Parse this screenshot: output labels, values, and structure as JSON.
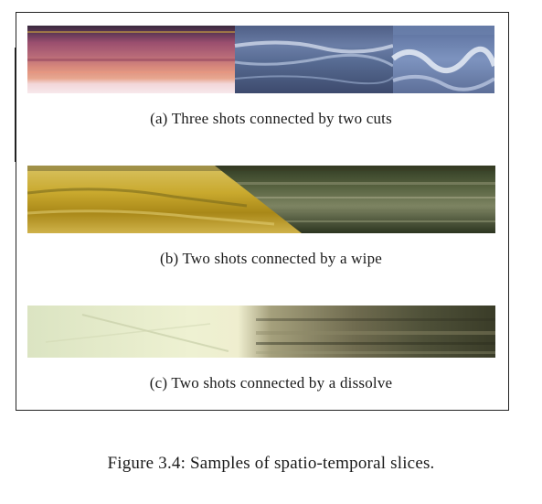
{
  "figure": {
    "label": "Figure 3.4:",
    "caption": "Samples of spatio-temporal slices."
  },
  "panels": [
    {
      "id": "a",
      "label": "(a) Three shots connected by two cuts"
    },
    {
      "id": "b",
      "label": "(b) Two shots connected by a wipe"
    },
    {
      "id": "c",
      "label": "(c) Two shots connected by a dissolve"
    }
  ],
  "colors": {
    "border": "#222222",
    "text": "#1a1a1a"
  }
}
